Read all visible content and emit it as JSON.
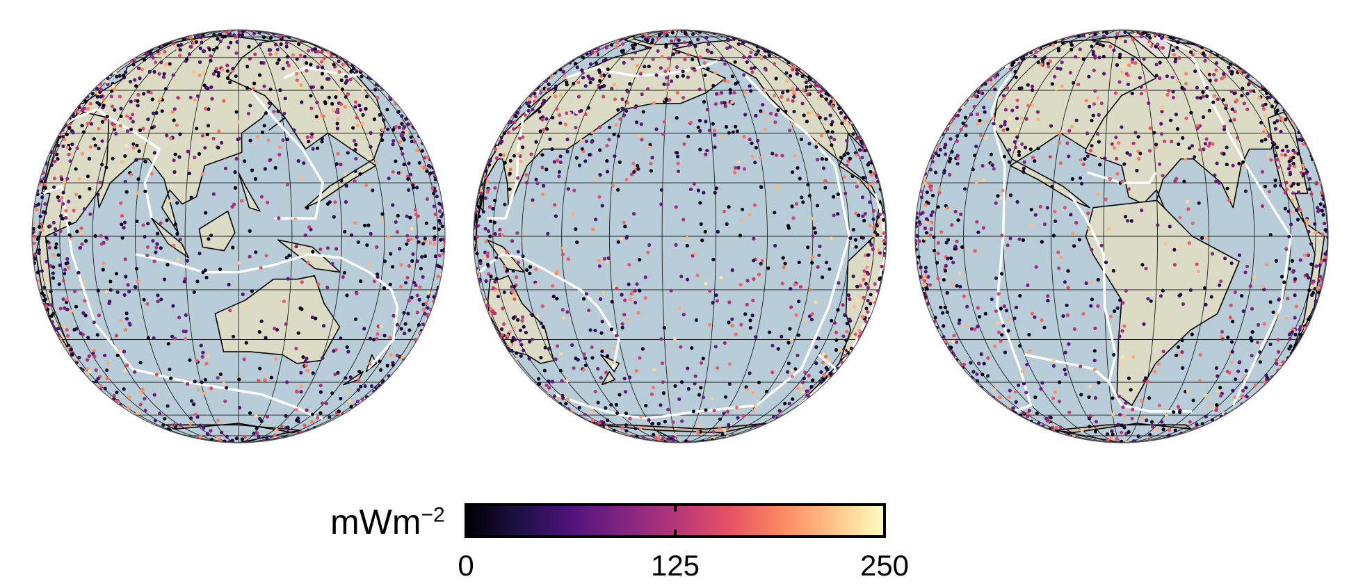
{
  "map": {
    "projection": "orthographic",
    "panel_centers": [
      {
        "lon": 120,
        "lat": 0
      },
      {
        "lon": -160,
        "lat": 0
      },
      {
        "lon": -70,
        "lat": 0
      }
    ],
    "graticule_step_deg": 15,
    "colors": {
      "ocean": "#b9cdd8",
      "land": "#dcdcc6",
      "land_highland": "#c8b8ae",
      "ice": "#e4dede",
      "coastline": "#000000",
      "plate_boundary": "#ffffff",
      "graticule": "#1a1a1a"
    }
  },
  "colorbar": {
    "title": "mWm",
    "title_exponent": "−2",
    "min": 0,
    "max": 250,
    "tick_labels": [
      "0",
      "125",
      "250"
    ],
    "colormap": "magma",
    "stops": [
      "#000004",
      "#1c1044",
      "#4f127b",
      "#812581",
      "#b5367a",
      "#e55064",
      "#fb8761",
      "#fec287",
      "#fcfdbf"
    ]
  }
}
